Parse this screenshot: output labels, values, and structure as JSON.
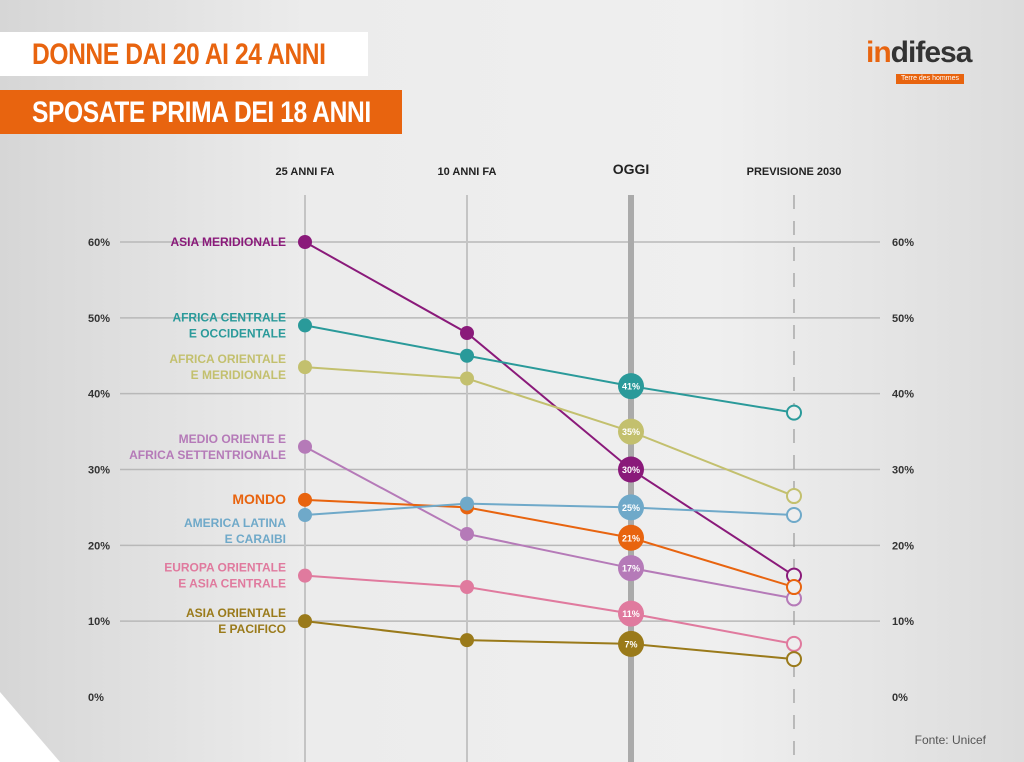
{
  "title_line1": "DONNE DAI 20 AI 24 ANNI",
  "title_line2": "SPOSATE PRIMA DEI 18 ANNI",
  "logo": {
    "name_a": "in",
    "name_b": "difesa",
    "partner": "Terre des hommes"
  },
  "source": "Fonte: Unicef",
  "chart_data": {
    "type": "line",
    "title": "Donne dai 20 ai 24 anni sposate prima dei 18 anni",
    "categories": [
      "25 ANNI FA",
      "10 ANNI FA",
      "OGGI",
      "PREVISIONE 2030"
    ],
    "ylim": [
      0,
      60
    ],
    "yticks": [
      "0%",
      "10%",
      "20%",
      "30%",
      "40%",
      "50%",
      "60%"
    ],
    "grid": true,
    "series": [
      {
        "name": "ASIA MERIDIONALE",
        "label": [
          "ASIA MERIDIONALE"
        ],
        "color": "#8a1a7a",
        "values": [
          60,
          48,
          30,
          16
        ],
        "today_label": "30%"
      },
      {
        "name": "AFRICA CENTRALE E OCCIDENTALE",
        "label": [
          "AFRICA CENTRALE",
          "E OCCIDENTALE"
        ],
        "color": "#2a9a9a",
        "values": [
          49,
          45,
          41,
          37.5
        ],
        "today_label": "41%"
      },
      {
        "name": "AFRICA ORIENTALE E MERIDIONALE",
        "label": [
          "AFRICA ORIENTALE",
          "E MERIDIONALE"
        ],
        "color": "#c3c06e",
        "values": [
          43.5,
          42,
          35,
          26.5
        ],
        "today_label": "35%"
      },
      {
        "name": "MEDIO ORIENTE E AFRICA SETTENTRIONALE",
        "label": [
          "MEDIO ORIENTE E",
          "AFRICA SETTENTRIONALE"
        ],
        "color": "#b57ab8",
        "values": [
          33,
          21.5,
          17,
          13
        ],
        "today_label": "17%"
      },
      {
        "name": "MONDO",
        "label": [
          "MONDO"
        ],
        "color": "#e8640f",
        "values": [
          26,
          25,
          21,
          14.5
        ],
        "today_label": "21%"
      },
      {
        "name": "AMERICA LATINA E CARAIBI",
        "label": [
          "AMERICA LATINA",
          "E CARAIBI"
        ],
        "color": "#6fa9c9",
        "values": [
          24,
          25.5,
          25,
          24
        ],
        "today_label": "25%"
      },
      {
        "name": "EUROPA ORIENTALE E ASIA CENTRALE",
        "label": [
          "EUROPA ORIENTALE",
          "E ASIA CENTRALE"
        ],
        "color": "#e07a9e",
        "values": [
          16,
          14.5,
          11,
          7
        ],
        "today_label": "11%"
      },
      {
        "name": "ASIA ORIENTALE E PACIFICO",
        "label": [
          "ASIA ORIENTALE",
          "E PACIFICO"
        ],
        "color": "#9a7a1a",
        "values": [
          10,
          7.5,
          7,
          5
        ],
        "today_label": "7%"
      }
    ]
  }
}
